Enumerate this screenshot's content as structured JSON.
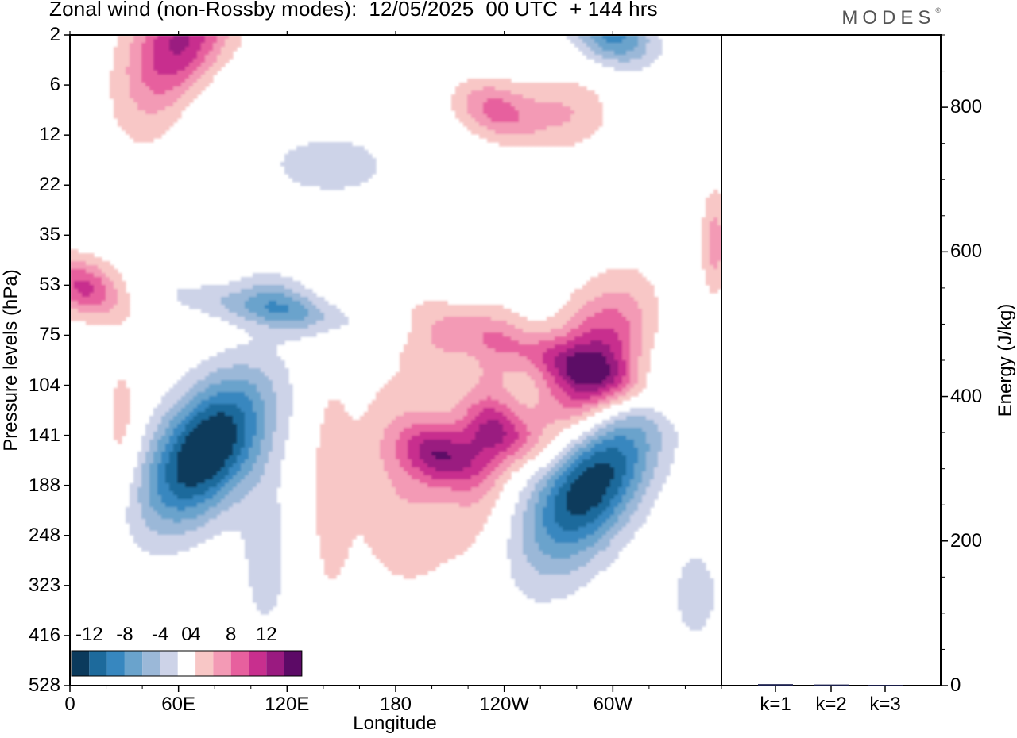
{
  "header": {
    "title": "Zonal wind (non-Rossby modes):  12/05/2025  00 UTC  + 144 hrs",
    "brand": "MODES"
  },
  "chart_data": [
    {
      "type": "heatmap",
      "title": "Zonal wind (non-Rossby modes):  12/05/2025  00 UTC  + 144 hrs",
      "xlabel": "Longitude",
      "ylabel": "Pressure levels (hPa)",
      "x_ticks": [
        "0",
        "60E",
        "120E",
        "180",
        "120W",
        "60W"
      ],
      "x_tick_degrees": [
        0,
        60,
        120,
        180,
        240,
        300
      ],
      "xlim": [
        0,
        360
      ],
      "y_ticks": [
        "2",
        "6",
        "12",
        "22",
        "35",
        "53",
        "75",
        "104",
        "141",
        "188",
        "248",
        "323",
        "416",
        "528"
      ],
      "colorbar": {
        "tick_labels": [
          "-12",
          "-8",
          "-4",
          "0",
          "4",
          "8",
          "12"
        ],
        "levels": [
          -14,
          -12,
          -10,
          -8,
          -6,
          -4,
          -2,
          2,
          4,
          6,
          8,
          10,
          12,
          14
        ],
        "colors": [
          "#0b3a5c",
          "#1d6a9c",
          "#3787bf",
          "#6aa3cc",
          "#9bb8d8",
          "#cdd3e8",
          "#ffffff",
          "#f8c7c6",
          "#f39ab5",
          "#e7609e",
          "#c82f8e",
          "#9a1a80",
          "#5c0a66"
        ]
      },
      "features": [
        {
          "sign": "negative",
          "peak": -14,
          "lon": 75,
          "level_hPa": 155
        },
        {
          "sign": "negative",
          "peak": -10,
          "lon": 285,
          "level_hPa": 185
        },
        {
          "sign": "negative",
          "peak": -8,
          "lon": 300,
          "level_hPa": 2
        },
        {
          "sign": "negative",
          "peak": -4,
          "lon": 115,
          "level_hPa": 60
        },
        {
          "sign": "positive",
          "peak": 10,
          "lon": 290,
          "level_hPa": 95
        },
        {
          "sign": "positive",
          "peak": 8,
          "lon": 205,
          "level_hPa": 160
        },
        {
          "sign": "positive",
          "peak": 6,
          "lon": 240,
          "level_hPa": 140
        },
        {
          "sign": "positive",
          "peak": 6,
          "lon": 235,
          "level_hPa": 9
        },
        {
          "sign": "positive",
          "peak": 10,
          "lon": 60,
          "level_hPa": 3
        },
        {
          "sign": "positive",
          "peak": 8,
          "lon": 8,
          "level_hPa": 54
        }
      ]
    },
    {
      "type": "bar",
      "ylabel": "Energy (J/kg)",
      "categories": [
        "k=1",
        "k=2",
        "k=3"
      ],
      "values": [
        2,
        1.5,
        1
      ],
      "y_ticks": [
        "0",
        "200",
        "400",
        "600",
        "800"
      ],
      "ylim": [
        0,
        900
      ]
    }
  ]
}
